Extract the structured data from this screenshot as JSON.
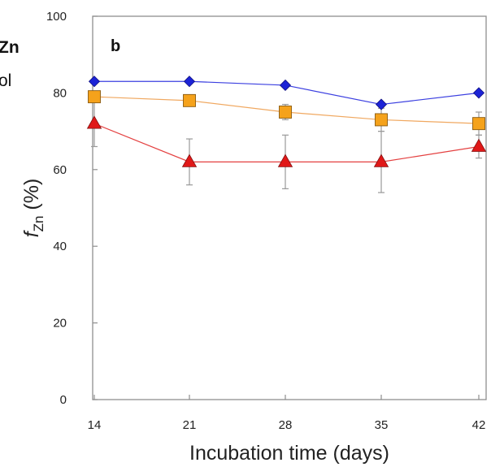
{
  "chart_data": {
    "type": "line",
    "panel_label": "b",
    "cropped_text": [
      "Zn",
      "ol"
    ],
    "xlabel": "Incubation time (days)",
    "ylabel_italic": "f",
    "ylabel_subscript": "Zn",
    "ylabel_suffix": " (%)",
    "x": [
      14,
      21,
      28,
      35,
      42
    ],
    "x_tick_labels": [
      "14",
      "21",
      "28",
      "35",
      "42"
    ],
    "ylim": [
      0,
      100
    ],
    "y_ticks": [
      0,
      20,
      40,
      60,
      80,
      100
    ],
    "y_tick_labels": [
      "0",
      "20",
      "40",
      "60",
      "80",
      "100"
    ],
    "grid": false,
    "legend": "none",
    "series": [
      {
        "marker": "diamond",
        "color": "#1c23d6",
        "line_color": "#3b3fe0",
        "values": [
          83,
          83,
          82,
          77,
          80
        ],
        "errors": [
          0,
          0,
          0,
          0,
          0
        ]
      },
      {
        "marker": "square",
        "color": "#f5a21b",
        "line_color": "#f0a860",
        "values": [
          79,
          78,
          75,
          73,
          72
        ],
        "errors": [
          0,
          0,
          2,
          3,
          3
        ]
      },
      {
        "marker": "triangle",
        "color": "#e01818",
        "line_color": "#e44040",
        "values": [
          72,
          62,
          62,
          62,
          66
        ],
        "errors": [
          6,
          6,
          7,
          8,
          3
        ]
      }
    ]
  }
}
